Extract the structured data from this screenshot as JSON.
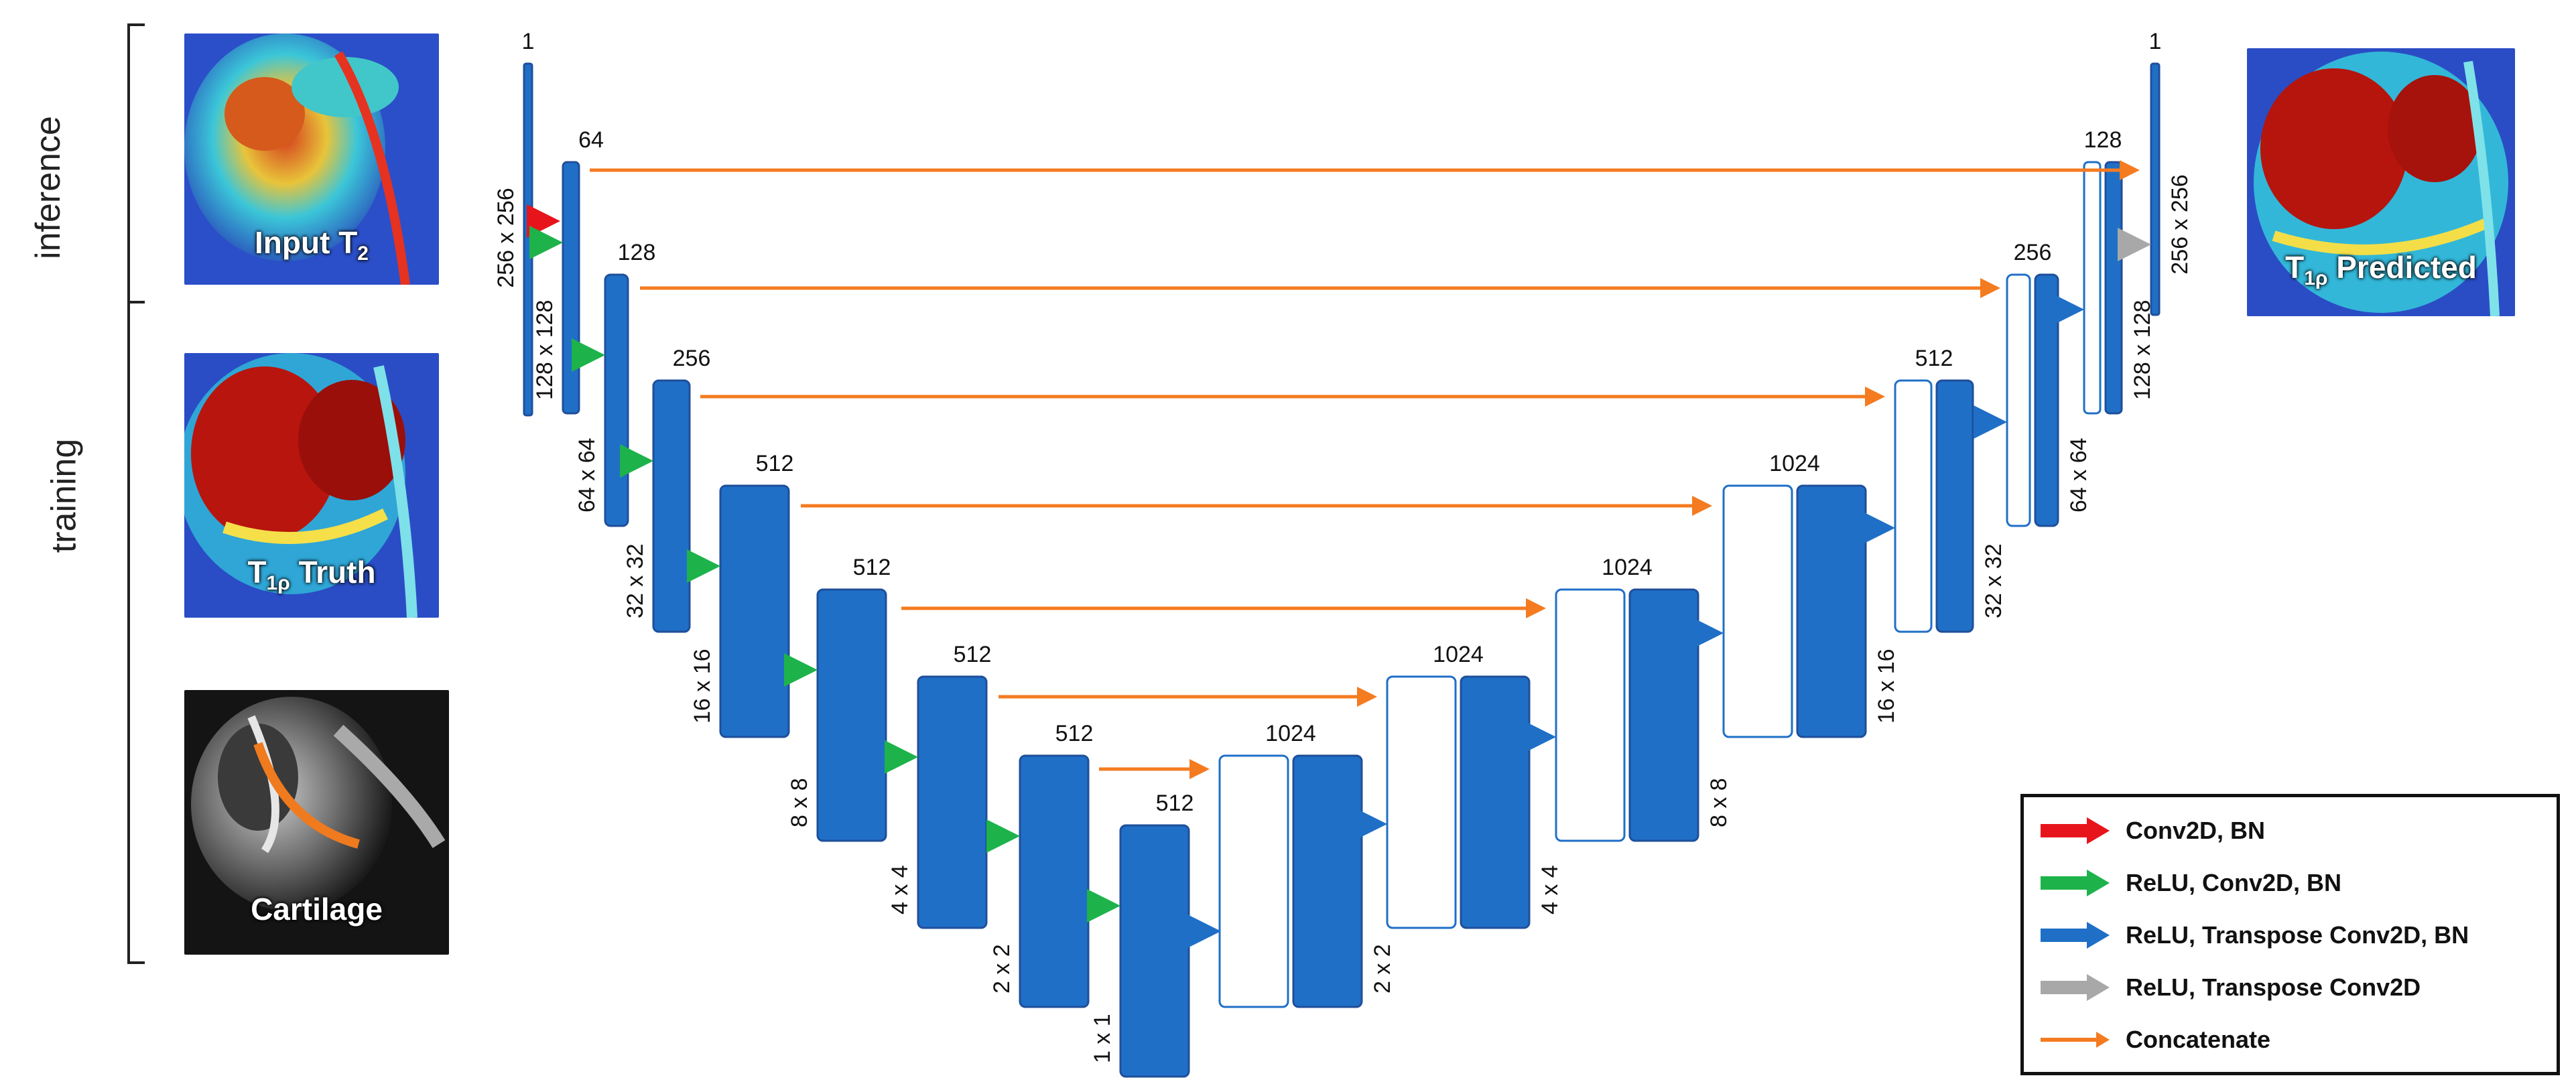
{
  "side_labels": {
    "inference": "inference",
    "training": "training"
  },
  "images": {
    "input": {
      "caption_main": "Input T",
      "caption_sub": "2"
    },
    "truth": {
      "caption_main": "T",
      "caption_sub": "1ρ",
      "caption_rest": " Truth"
    },
    "cartilage": {
      "caption_main": "Cartilage"
    },
    "predicted": {
      "caption_main": "T",
      "caption_sub": "1ρ",
      "caption_rest": " Predicted"
    }
  },
  "encoder": {
    "channels": [
      "1",
      "64",
      "128",
      "256",
      "512",
      "512",
      "512",
      "512",
      "512"
    ],
    "sizes": [
      "256 x 256",
      "128 x 128",
      "64 x 64",
      "32 x 32",
      "16 x 16",
      "8 x 8",
      "4 x 4",
      "2 x 2",
      "1 x 1"
    ]
  },
  "decoder": {
    "channels": [
      "1024",
      "1024",
      "1024",
      "1024",
      "512",
      "256",
      "128",
      "1"
    ],
    "sizes": [
      "2 x 2",
      "4 x 4",
      "8 x 8",
      "16 x 16",
      "32 x 32",
      "64 x 64",
      "128 x 128",
      "256 x 256"
    ]
  },
  "legend": [
    {
      "label": "Conv2D, BN",
      "color": "#e8141b"
    },
    {
      "label": "ReLU, Conv2D, BN",
      "color": "#1db34a"
    },
    {
      "label": "ReLU, Transpose Conv2D, BN",
      "color": "#1f6fc7"
    },
    {
      "label": "ReLU, Transpose Conv2D",
      "color": "#a8a8a8"
    },
    {
      "label": "Concatenate",
      "color": "#f47b20"
    }
  ],
  "colors": {
    "block_fill": "#1f6fc7",
    "block_border": "#1f4f9a",
    "concat": "#f47b20"
  }
}
